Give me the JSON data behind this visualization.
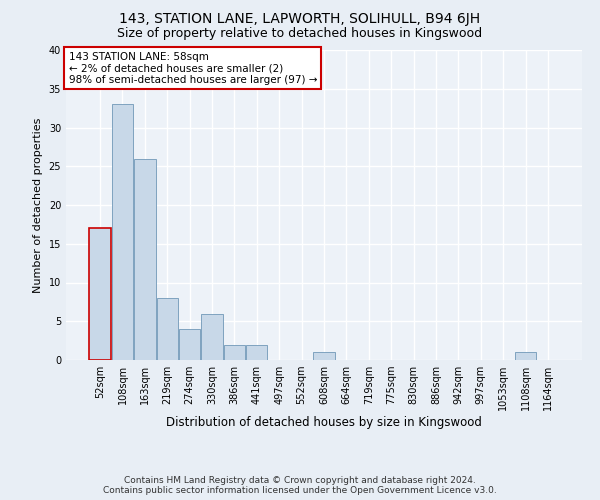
{
  "title": "143, STATION LANE, LAPWORTH, SOLIHULL, B94 6JH",
  "subtitle": "Size of property relative to detached houses in Kingswood",
  "xlabel": "Distribution of detached houses by size in Kingswood",
  "ylabel": "Number of detached properties",
  "footnote1": "Contains HM Land Registry data © Crown copyright and database right 2024.",
  "footnote2": "Contains public sector information licensed under the Open Government Licence v3.0.",
  "bin_labels": [
    "52sqm",
    "108sqm",
    "163sqm",
    "219sqm",
    "274sqm",
    "330sqm",
    "386sqm",
    "441sqm",
    "497sqm",
    "552sqm",
    "608sqm",
    "664sqm",
    "719sqm",
    "775sqm",
    "830sqm",
    "886sqm",
    "942sqm",
    "997sqm",
    "1053sqm",
    "1108sqm",
    "1164sqm"
  ],
  "bar_heights": [
    17,
    33,
    26,
    8,
    4,
    6,
    2,
    2,
    0,
    0,
    1,
    0,
    0,
    0,
    0,
    0,
    0,
    0,
    0,
    1,
    0
  ],
  "bar_color": "#c8d8e8",
  "bar_edge_color": "#7098b8",
  "highlight_bar_index": 0,
  "annotation_box_text": "143 STATION LANE: 58sqm\n← 2% of detached houses are smaller (2)\n98% of semi-detached houses are larger (97) →",
  "annotation_box_color": "#ffffff",
  "annotation_box_edge_color": "#cc0000",
  "ylim": [
    0,
    40
  ],
  "yticks": [
    0,
    5,
    10,
    15,
    20,
    25,
    30,
    35,
    40
  ],
  "bg_color": "#e8eef5",
  "plot_bg_color": "#edf2f8",
  "grid_color": "#ffffff",
  "title_fontsize": 10,
  "subtitle_fontsize": 9,
  "xlabel_fontsize": 8.5,
  "ylabel_fontsize": 8,
  "tick_fontsize": 7,
  "annotation_fontsize": 7.5,
  "footnote_fontsize": 6.5
}
